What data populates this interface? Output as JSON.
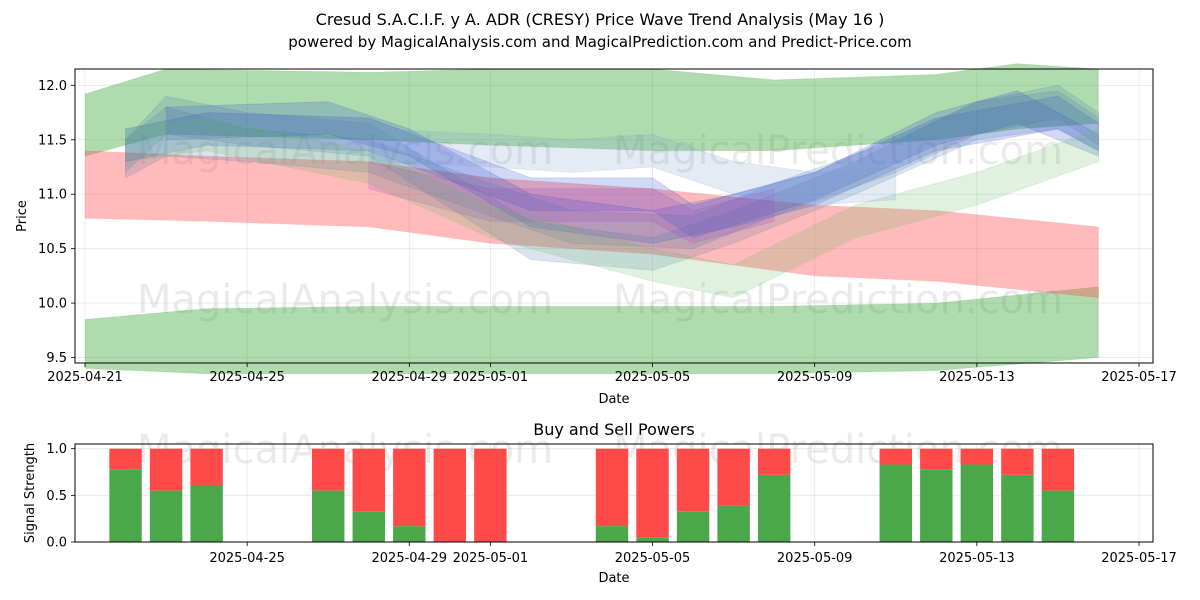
{
  "chart_data": [
    {
      "type": "area",
      "title": "Cresud S.A.C.I.F. y A. ADR (CRESY) Price Wave Trend Analysis (May 16 )",
      "subtitle": "powered by MagicalAnalysis.com and MagicalPrediction.com and Predict-Price.com",
      "xlabel": "Date",
      "ylabel": "Price",
      "xlim": [
        "2025-04-21",
        "2025-05-17"
      ],
      "ylim": [
        9.45,
        12.15
      ],
      "xticks": [
        "2025-04-21",
        "2025-04-25",
        "2025-04-29",
        "2025-05-01",
        "2025-05-05",
        "2025-05-09",
        "2025-05-13",
        "2025-05-17"
      ],
      "yticks": [
        "9.5",
        "10.0",
        "10.5",
        "11.0",
        "11.5",
        "12.0"
      ],
      "watermarks": [
        "MagicalAnalysis.com",
        "MagicalPrediction.com",
        "MagicalAnalysis.com",
        "MagicalPrediction.com"
      ],
      "series": [
        {
          "name": "upper green band",
          "color": "#2ca02c",
          "x": [
            "2025-04-21",
            "2025-04-23",
            "2025-04-28",
            "2025-05-01",
            "2025-05-05",
            "2025-05-08",
            "2025-05-12",
            "2025-05-14",
            "2025-05-16"
          ],
          "lower": [
            11.35,
            11.55,
            11.5,
            11.45,
            11.4,
            11.4,
            11.5,
            11.6,
            11.65
          ],
          "upper": [
            11.92,
            12.15,
            12.12,
            12.15,
            12.15,
            12.05,
            12.1,
            12.2,
            12.15
          ]
        },
        {
          "name": "lower green band",
          "color": "#2ca02c",
          "x": [
            "2025-04-21",
            "2025-04-24",
            "2025-04-28",
            "2025-05-01",
            "2025-05-05",
            "2025-05-08",
            "2025-05-12",
            "2025-05-16"
          ],
          "lower": [
            9.4,
            9.35,
            9.35,
            9.35,
            9.35,
            9.35,
            9.38,
            9.5
          ],
          "upper": [
            9.85,
            9.95,
            9.97,
            9.97,
            9.97,
            9.97,
            10.0,
            10.15
          ]
        },
        {
          "name": "red band",
          "color": "#ff4d4d",
          "x": [
            "2025-04-21",
            "2025-04-24",
            "2025-04-28",
            "2025-05-01",
            "2025-05-05",
            "2025-05-09",
            "2025-05-12",
            "2025-05-16"
          ],
          "lower": [
            10.78,
            10.75,
            10.7,
            10.55,
            10.45,
            10.25,
            10.2,
            10.05
          ],
          "upper": [
            11.4,
            11.35,
            11.3,
            11.15,
            11.05,
            10.9,
            10.85,
            10.7
          ]
        },
        {
          "name": "blue wave 1",
          "color": "#1f3fd0",
          "x": [
            "2025-04-22",
            "2025-04-24",
            "2025-04-28",
            "2025-05-02",
            "2025-05-05",
            "2025-05-06",
            "2025-05-09",
            "2025-05-12",
            "2025-05-14",
            "2025-05-16"
          ],
          "lower": [
            11.3,
            11.45,
            11.4,
            10.85,
            10.85,
            10.6,
            10.95,
            11.45,
            11.65,
            11.35
          ],
          "upper": [
            11.6,
            11.75,
            11.7,
            11.15,
            11.15,
            10.9,
            11.2,
            11.75,
            11.95,
            11.55
          ]
        },
        {
          "name": "blue wave 2",
          "color": "#1f3fd0",
          "x": [
            "2025-04-23",
            "2025-04-27",
            "2025-04-29",
            "2025-05-02",
            "2025-05-05",
            "2025-05-07",
            "2025-05-09",
            "2025-05-12",
            "2025-05-15",
            "2025-05-16"
          ],
          "lower": [
            11.5,
            11.55,
            11.35,
            10.7,
            10.55,
            10.7,
            10.9,
            11.4,
            11.6,
            11.4
          ],
          "upper": [
            11.8,
            11.85,
            11.6,
            11.0,
            10.85,
            11.0,
            11.2,
            11.7,
            11.9,
            11.65
          ]
        },
        {
          "name": "steel wave 1",
          "color": "#4a7aa8",
          "x": [
            "2025-04-22",
            "2025-04-23",
            "2025-04-25",
            "2025-04-28",
            "2025-05-01",
            "2025-05-03",
            "2025-05-06",
            "2025-05-08",
            "2025-05-11",
            "2025-05-13",
            "2025-05-15",
            "2025-05-16"
          ],
          "lower": [
            11.15,
            11.35,
            11.3,
            11.2,
            10.8,
            10.55,
            10.5,
            10.8,
            11.2,
            11.55,
            11.7,
            11.45
          ],
          "upper": [
            11.5,
            11.8,
            11.6,
            11.5,
            11.1,
            10.85,
            10.8,
            11.1,
            11.5,
            11.85,
            12.0,
            11.75
          ]
        },
        {
          "name": "steel wave 2",
          "color": "#4a7aa8",
          "x": [
            "2025-04-22",
            "2025-04-23",
            "2025-04-25",
            "2025-04-28",
            "2025-05-02",
            "2025-05-05",
            "2025-05-07",
            "2025-05-10",
            "2025-05-13",
            "2025-05-15",
            "2025-05-16"
          ],
          "lower": [
            11.2,
            11.55,
            11.45,
            11.35,
            10.4,
            10.3,
            10.55,
            11.0,
            11.5,
            11.6,
            11.4
          ],
          "upper": [
            11.5,
            11.9,
            11.75,
            11.65,
            10.75,
            10.6,
            10.85,
            11.3,
            11.85,
            11.95,
            11.7
          ]
        },
        {
          "name": "purple wave",
          "color": "#9b45c8",
          "x": [
            "2025-04-28",
            "2025-05-01",
            "2025-05-02",
            "2025-05-05",
            "2025-05-06",
            "2025-05-08"
          ],
          "lower": [
            11.05,
            10.75,
            10.75,
            10.75,
            10.55,
            10.75
          ],
          "upper": [
            11.3,
            11.05,
            11.05,
            11.05,
            10.85,
            11.05
          ]
        },
        {
          "name": "light green wave",
          "color": "#66bb66",
          "x": [
            "2025-04-22",
            "2025-04-24",
            "2025-04-28",
            "2025-05-01",
            "2025-05-03",
            "2025-05-05",
            "2025-05-07",
            "2025-05-10",
            "2025-05-13",
            "2025-05-16"
          ],
          "lower": [
            11.3,
            11.4,
            11.1,
            10.6,
            10.4,
            10.2,
            10.05,
            10.6,
            10.9,
            11.3
          ],
          "upper": [
            11.6,
            11.7,
            11.4,
            10.9,
            10.7,
            10.5,
            10.35,
            10.9,
            11.2,
            11.6
          ]
        },
        {
          "name": "light blue wave",
          "color": "#7799cc",
          "x": [
            "2025-04-28",
            "2025-05-01",
            "2025-05-03",
            "2025-05-05",
            "2025-05-07",
            "2025-05-09",
            "2025-05-11"
          ],
          "lower": [
            11.3,
            11.25,
            11.2,
            11.25,
            11.0,
            10.9,
            10.95
          ],
          "upper": [
            11.6,
            11.55,
            11.5,
            11.55,
            11.3,
            11.2,
            11.25
          ]
        }
      ]
    },
    {
      "type": "bar",
      "title": "Buy and Sell Powers",
      "xlabel": "Date",
      "ylabel": "Signal Strength",
      "ylim": [
        0,
        1.05
      ],
      "yticks": [
        "0.0",
        "0.5",
        "1.0"
      ],
      "xticks": [
        "2025-04-25",
        "2025-04-29",
        "2025-05-01",
        "2025-05-05",
        "2025-05-09",
        "2025-05-13",
        "2025-05-17"
      ],
      "buy_color": "#4aa84a",
      "sell_color": "#ff4a4a",
      "dates": [
        "2025-04-22",
        "2025-04-23",
        "2025-04-24",
        "2025-04-27",
        "2025-04-28",
        "2025-04-29",
        "2025-04-30",
        "2025-05-01",
        "2025-05-04",
        "2025-05-05",
        "2025-05-06",
        "2025-05-07",
        "2025-05-08",
        "2025-05-11",
        "2025-05-12",
        "2025-05-13",
        "2025-05-14",
        "2025-05-15"
      ],
      "buy": [
        0.78,
        0.55,
        0.6,
        0.55,
        0.33,
        0.17,
        0.0,
        0.0,
        0.17,
        0.05,
        0.33,
        0.39,
        0.72,
        0.83,
        0.78,
        0.83,
        0.72,
        0.55
      ],
      "sell": [
        0.22,
        0.45,
        0.4,
        0.45,
        0.67,
        0.83,
        1.0,
        1.0,
        0.83,
        0.95,
        0.67,
        0.61,
        0.28,
        0.17,
        0.22,
        0.17,
        0.28,
        0.45
      ]
    }
  ]
}
